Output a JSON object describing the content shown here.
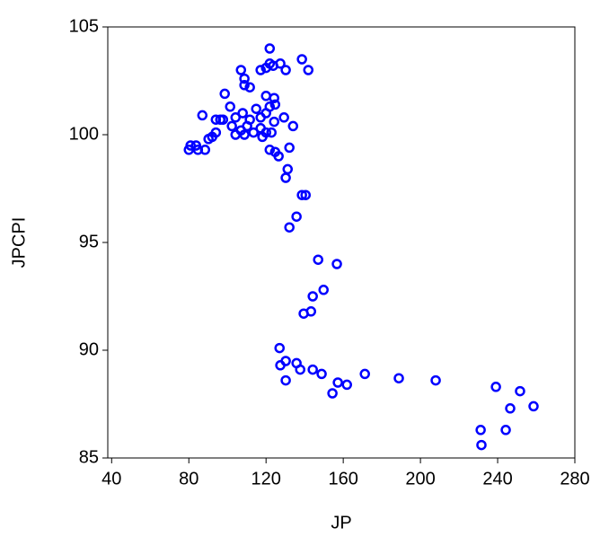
{
  "chart_data": {
    "type": "scatter",
    "x_label": "JP",
    "y_label": "JPCPI",
    "color": "#0000ff",
    "xlim": [
      38,
      280
    ],
    "ylim": [
      85,
      105
    ],
    "xticks": [
      40,
      80,
      120,
      160,
      200,
      240,
      280
    ],
    "yticks": [
      85,
      90,
      95,
      100,
      105
    ],
    "x": [
      121.9,
      138.6,
      127.4,
      121.9,
      123.7,
      120.0,
      117.2,
      130.2,
      141.9,
      107.0,
      108.8,
      108.8,
      111.6,
      98.6,
      120.0,
      124.2,
      124.7,
      121.9,
      87.0,
      101.4,
      107.9,
      114.9,
      120.0,
      129.3,
      97.7,
      104.2,
      111.6,
      117.2,
      124.2,
      96.3,
      94.0,
      102.3,
      107.0,
      110.2,
      117.2,
      120.0,
      122.8,
      134.0,
      104.2,
      108.8,
      113.5,
      118.1,
      92.1,
      94.0,
      90.2,
      80.9,
      80.0,
      84.7,
      83.7,
      88.4,
      121.9,
      124.7,
      126.5,
      132.1,
      131.2,
      130.2,
      140.5,
      138.6,
      135.8,
      132.1,
      147.0,
      156.7,
      149.8,
      144.2,
      143.3,
      139.5,
      127.0,
      130.2,
      127.4,
      135.8,
      137.7,
      144.2,
      148.8,
      130.2,
      157.2,
      161.9,
      154.4,
      171.2,
      188.8,
      207.9,
      239.1,
      251.6,
      246.5,
      258.6,
      231.2,
      231.6,
      244.2
    ],
    "y": [
      104.0,
      103.5,
      103.3,
      103.3,
      103.2,
      103.1,
      103.0,
      103.0,
      103.0,
      103.0,
      102.6,
      102.3,
      102.2,
      101.9,
      101.8,
      101.7,
      101.4,
      101.3,
      100.9,
      101.3,
      101.0,
      101.2,
      101.0,
      100.8,
      100.7,
      100.8,
      100.7,
      100.8,
      100.6,
      100.7,
      100.7,
      100.4,
      100.2,
      100.4,
      100.3,
      100.1,
      100.1,
      100.4,
      100.0,
      100.0,
      100.1,
      99.9,
      99.9,
      100.1,
      99.8,
      99.5,
      99.3,
      99.3,
      99.5,
      99.3,
      99.3,
      99.2,
      99.0,
      99.4,
      98.4,
      98.0,
      97.2,
      97.2,
      96.2,
      95.7,
      94.2,
      94.0,
      92.8,
      92.5,
      91.8,
      91.7,
      90.1,
      89.5,
      89.3,
      89.4,
      89.1,
      89.1,
      88.9,
      88.6,
      88.5,
      88.4,
      88.0,
      88.9,
      88.7,
      88.6,
      88.3,
      88.1,
      87.3,
      87.4,
      86.3,
      85.6,
      86.3
    ]
  }
}
